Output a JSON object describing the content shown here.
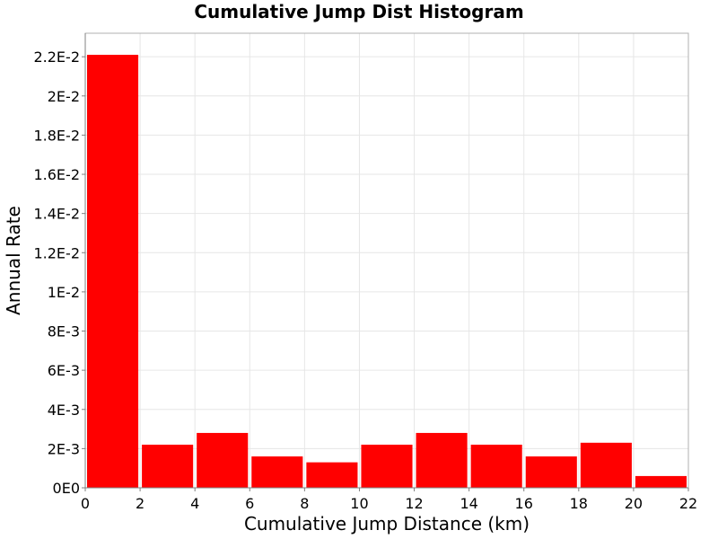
{
  "chart_data": {
    "type": "bar",
    "title": "Cumulative Jump Dist Histogram",
    "xlabel": "Cumulative Jump Distance (km)",
    "ylabel": "Annual Rate",
    "xlim": [
      0,
      22
    ],
    "ylim": [
      0,
      0.0232
    ],
    "grid": true,
    "bar_color": "#ff0000",
    "x_ticks": [
      0,
      2,
      4,
      6,
      8,
      10,
      12,
      14,
      16,
      18,
      20,
      22
    ],
    "x_tick_labels": [
      "0",
      "2",
      "4",
      "6",
      "8",
      "10",
      "12",
      "14",
      "16",
      "18",
      "20",
      "22"
    ],
    "y_ticks": [
      0,
      0.002,
      0.004,
      0.006,
      0.008,
      0.01,
      0.012,
      0.014,
      0.016,
      0.018,
      0.02,
      0.022
    ],
    "y_tick_labels": [
      "0E0",
      "2E-3",
      "4E-3",
      "6E-3",
      "8E-3",
      "1E-2",
      "1.2E-2",
      "1.4E-2",
      "1.6E-2",
      "1.8E-2",
      "2E-2",
      "2.2E-2"
    ],
    "bins": [
      {
        "start": 0,
        "end": 2,
        "value": 0.0221
      },
      {
        "start": 2,
        "end": 4,
        "value": 0.0022
      },
      {
        "start": 4,
        "end": 6,
        "value": 0.0028
      },
      {
        "start": 6,
        "end": 8,
        "value": 0.0016
      },
      {
        "start": 8,
        "end": 10,
        "value": 0.0013
      },
      {
        "start": 10,
        "end": 12,
        "value": 0.0022
      },
      {
        "start": 12,
        "end": 14,
        "value": 0.0028
      },
      {
        "start": 14,
        "end": 16,
        "value": 0.0022
      },
      {
        "start": 16,
        "end": 18,
        "value": 0.0016
      },
      {
        "start": 18,
        "end": 20,
        "value": 0.0023
      },
      {
        "start": 20,
        "end": 22,
        "value": 0.0006
      }
    ]
  }
}
